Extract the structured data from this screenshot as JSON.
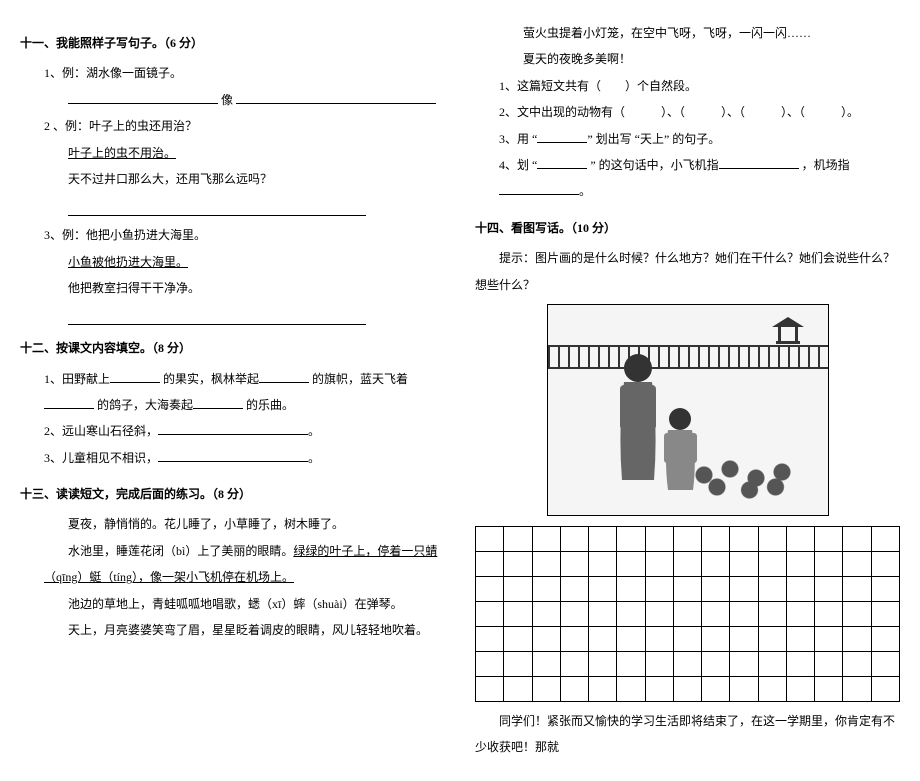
{
  "left": {
    "s11": {
      "title": "十一、我能照样子写句子。（6 分）",
      "q1": {
        "label": "1、例：湖水像一面镜子。",
        "mid": "像"
      },
      "q2": {
        "label": "2 、例：叶子上的虫还用治？",
        "under": "叶子上的虫不用治。",
        "line2": "天不过井口那么大，还用飞那么远吗？"
      },
      "q3": {
        "label": "3、例：他把小鱼扔进大海里。",
        "under": "小鱼被他扔进大海里。",
        "line2": "他把教室扫得干干净净。"
      }
    },
    "s12": {
      "title": "十二、按课文内容填空。（8 分）",
      "q1a": "1、田野献上",
      "q1b": "的果实，枫林举起",
      "q1c": "的旗帜，蓝天飞着",
      "q1d": "的鸽子，大海奏起",
      "q1e": "的乐曲。",
      "q2a": "2、远山寒山石径斜，",
      "q2end": "。",
      "q3a": "3、儿童相见不相识，",
      "q3end": "。"
    },
    "s13": {
      "title": "十三、读读短文，完成后面的练习。（8 分）",
      "p1": "夏夜，静悄悄的。花儿睡了，小草睡了，树木睡了。",
      "p2a": "水池里，睡莲花闭（bì）上了美丽的眼睛。",
      "p2u": "绿绿的叶子上，停着一只蜻（qīng）蜓（tíng），像一架小飞机停在机场上。",
      "p3": "池边的草地上，青蛙呱呱地唱歌，蟋（xī）蟀（shuài）在弹琴。",
      "p4": "天上，月亮婆婆笑弯了眉，星星眨着调皮的眼睛，风儿轻轻地吹着。"
    }
  },
  "right": {
    "p5": "萤火虫提着小灯笼，在空中飞呀，飞呀，一闪一闪……",
    "p6": "夏天的夜晚多美啊！",
    "q1": "1、这篇短文共有（　　）个自然段。",
    "q2a": "2、文中出现的动物有（　　　）、（　　　）、（　　　）、（　　　）。",
    "q3a": "3、用 “",
    "q3b": "” 划出写 “天上” 的句子。",
    "q4a": "4、划 “",
    "q4b": "” 的这句话中，小飞机指",
    "q4c": "，机场指",
    "q4end": "。",
    "s14": {
      "title": "十四、看图写话。（10 分）",
      "prompt": "提示：图片画的是什么时候？什么地方？她们在干什么？她们会说些什么？想些什么？"
    },
    "footer": "同学们！紧张而又愉快的学习生活即将结束了，在这一学期里，你肯定有不少收获吧！那就",
    "grid": {
      "rows": 7,
      "cols": 15
    }
  }
}
